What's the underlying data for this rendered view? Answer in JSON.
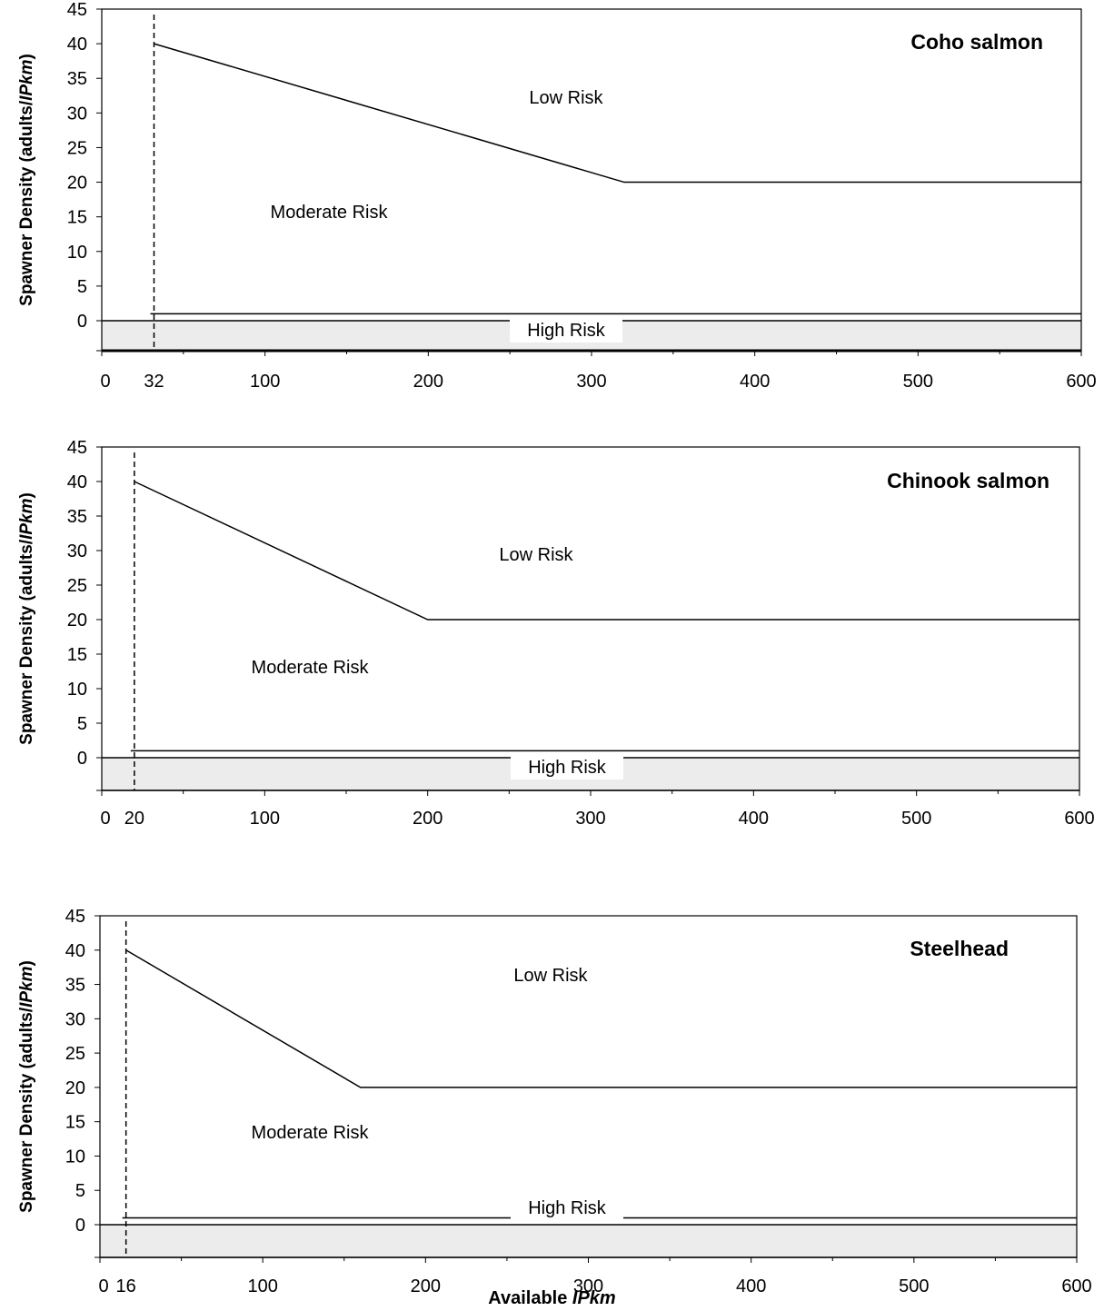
{
  "chart_data": [
    {
      "type": "line",
      "title": "Coho salmon",
      "ylabel_prefix": "Spawner Density (adults/",
      "ylabel_italic": "IPkm",
      "ylabel_suffix": ")",
      "ylim": [
        0,
        45
      ],
      "xlim": [
        0,
        600
      ],
      "yticks": [
        "0",
        "5",
        "10",
        "15",
        "20",
        "25",
        "30",
        "35",
        "40",
        "45"
      ],
      "xticks": [
        0,
        32,
        100,
        200,
        300,
        400,
        500,
        600
      ],
      "xtick_labels": [
        "0",
        "32",
        "100",
        "200",
        "300",
        "400",
        "500",
        "600"
      ],
      "min_ipkm": 32,
      "threshold_line": {
        "x": [
          32,
          320,
          600
        ],
        "y": [
          40,
          20,
          20
        ]
      },
      "high_risk_line_y": 1,
      "regions": {
        "low": "Low Risk",
        "moderate": "Moderate Risk",
        "high": "High Risk"
      }
    },
    {
      "type": "line",
      "title": "Chinook salmon",
      "ylabel_prefix": "Spawner Density (adults/",
      "ylabel_italic": "IPkm",
      "ylabel_suffix": ")",
      "ylim": [
        0,
        45
      ],
      "xlim": [
        0,
        600
      ],
      "yticks": [
        "0",
        "5",
        "10",
        "15",
        "20",
        "25",
        "30",
        "35",
        "40",
        "45"
      ],
      "xticks": [
        0,
        20,
        100,
        200,
        300,
        400,
        500,
        600
      ],
      "xtick_labels": [
        "0",
        "20",
        "100",
        "200",
        "300",
        "400",
        "500",
        "600"
      ],
      "min_ipkm": 20,
      "threshold_line": {
        "x": [
          20,
          200,
          600
        ],
        "y": [
          40,
          20,
          20
        ]
      },
      "high_risk_line_y": 1,
      "regions": {
        "low": "Low Risk",
        "moderate": "Moderate Risk",
        "high": "High Risk"
      }
    },
    {
      "type": "line",
      "title": "Steelhead",
      "ylabel_prefix": "Spawner Density (adults/",
      "ylabel_italic": "IPkm",
      "ylabel_suffix": ")",
      "ylim": [
        0,
        45
      ],
      "xlim": [
        0,
        600
      ],
      "yticks": [
        "0",
        "5",
        "10",
        "15",
        "20",
        "25",
        "30",
        "35",
        "40",
        "45"
      ],
      "xticks": [
        0,
        16,
        100,
        200,
        300,
        400,
        500,
        600
      ],
      "xtick_labels": [
        "0",
        "16",
        "100",
        "200",
        "300",
        "400",
        "500",
        "600"
      ],
      "min_ipkm": 16,
      "threshold_line": {
        "x": [
          16,
          160,
          600
        ],
        "y": [
          40,
          20,
          20
        ]
      },
      "high_risk_line_y": 1,
      "regions": {
        "low": "Low Risk",
        "moderate": "Moderate Risk",
        "high": "High Risk"
      }
    }
  ],
  "xaxis_title_prefix": "Available ",
  "xaxis_title_italic": "IPkm",
  "colors": {
    "high_risk_fill": "#ececec",
    "line": "#000000"
  }
}
